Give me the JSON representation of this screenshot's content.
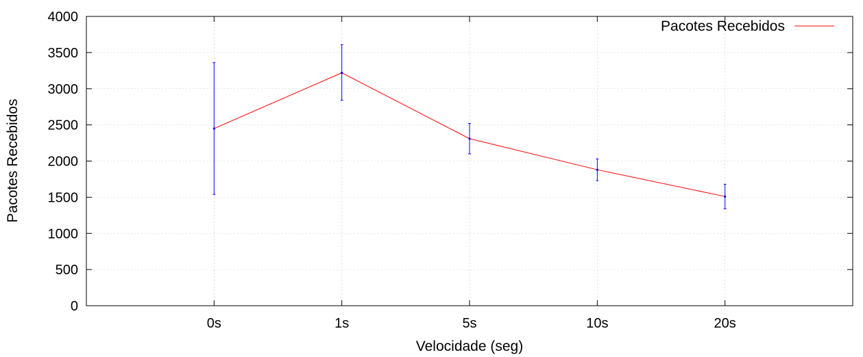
{
  "chart_data": {
    "type": "line",
    "title": "",
    "xlabel": "Velocidade (seg)",
    "ylabel": "Pacotes Recebidos",
    "categories": [
      "0s",
      "1s",
      "5s",
      "10s",
      "20s"
    ],
    "ylim": [
      0,
      4000
    ],
    "yticks": [
      0,
      500,
      1000,
      1500,
      2000,
      2500,
      3000,
      3500,
      4000
    ],
    "grid": true,
    "legend_position": "top-right",
    "series": [
      {
        "name": "Pacotes Recebidos",
        "color": "#ff0000",
        "errorbar_color": "#0000ff",
        "values": [
          2450,
          3220,
          2310,
          1880,
          1510
        ],
        "error_low": [
          1540,
          2840,
          2100,
          1730,
          1340
        ],
        "error_high": [
          3360,
          3610,
          2520,
          2030,
          1680
        ]
      }
    ]
  }
}
